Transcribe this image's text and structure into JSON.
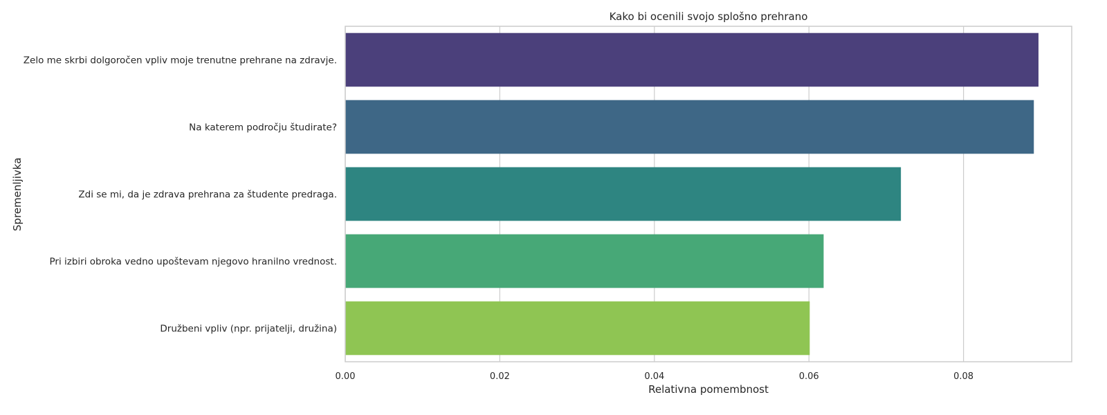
{
  "chart_data": {
    "type": "bar",
    "orientation": "horizontal",
    "title": "Kako bi ocenili svojo splošno prehrano",
    "xlabel": "Relativna pomembnost",
    "ylabel": "Spremenljivka",
    "xlim": [
      0,
      0.094
    ],
    "xticks": [
      0,
      0.02,
      0.04,
      0.06,
      0.08
    ],
    "xtick_labels": [
      "0.00",
      "0.02",
      "0.04",
      "0.06",
      "0.08"
    ],
    "grid": true,
    "categories": [
      "Zelo me skrbi dolgoročen vpliv moje trenutne prehrane na zdravje.",
      "Na katerem področju študirate?",
      "Zdi se mi, da je zdrava prehrana za študente predraga.",
      "Pri izbiri obroka vedno upoštevam njegovo hranilno vrednost.",
      "Družbeni vpliv (npr. prijatelji, družina)"
    ],
    "values": [
      0.0897,
      0.0891,
      0.0719,
      0.0619,
      0.0601
    ],
    "colors": [
      "#4b407b",
      "#3e6786",
      "#2e8581",
      "#47a877",
      "#8fc553"
    ]
  }
}
